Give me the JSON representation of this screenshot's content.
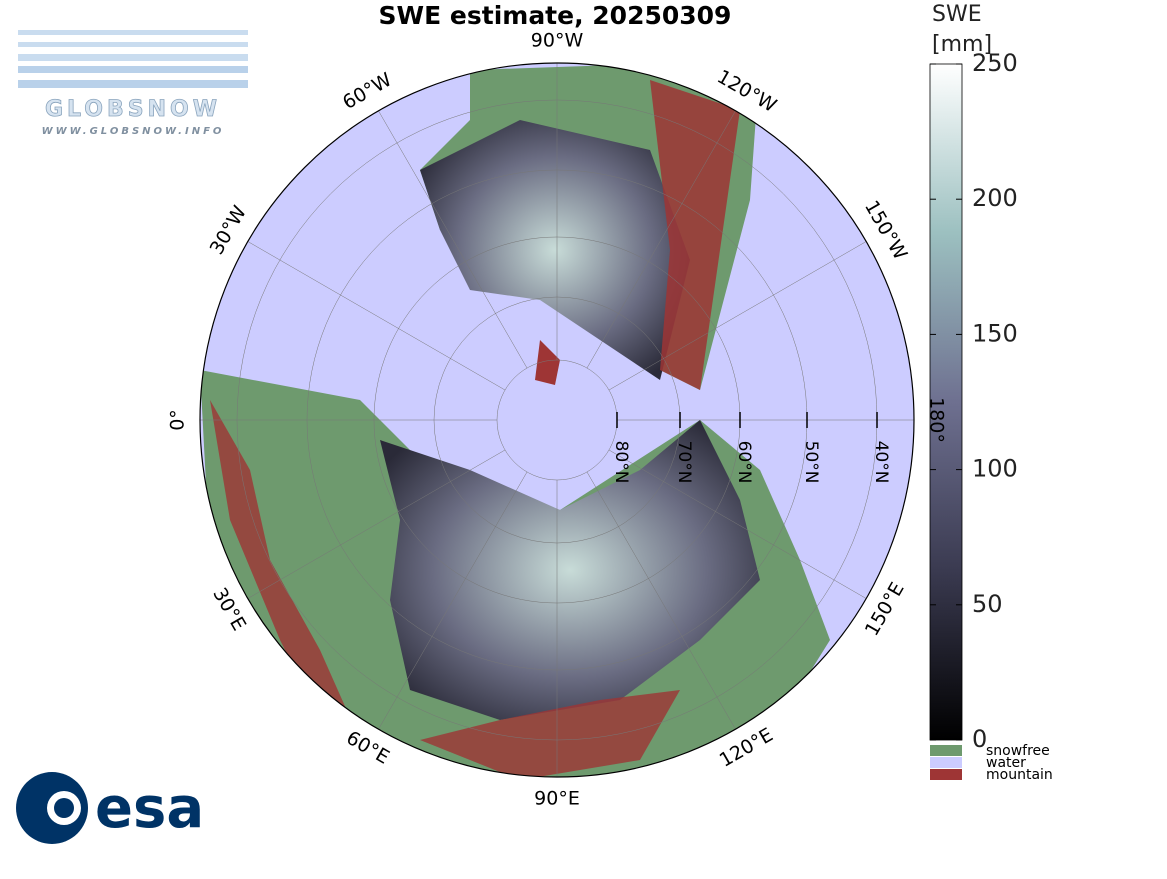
{
  "title": "SWE estimate, 20250309",
  "logo_top": {
    "name": "GLOBSNOW",
    "url": "WWW.GLOBSNOW.INFO"
  },
  "logo_bottom": "esa",
  "longitude_labels": [
    "90°W",
    "120°W",
    "150°W",
    "180°",
    "150°E",
    "120°E",
    "90°E",
    "60°E",
    "30°E",
    "0°",
    "30°W",
    "60°W"
  ],
  "latitude_labels": [
    "80°N",
    "70°N",
    "60°N",
    "50°N",
    "40°N"
  ],
  "colorbar": {
    "label_line1": "SWE",
    "label_line2": "[mm]",
    "clim": [
      0,
      250
    ],
    "ticks": [
      0,
      50,
      100,
      150,
      200,
      250
    ]
  },
  "legend": [
    {
      "name": "snowfree",
      "color": "#6e9a6e"
    },
    {
      "name": "water",
      "color": "#ccccff"
    },
    {
      "name": "mountain",
      "color": "#9e3535"
    }
  ]
}
